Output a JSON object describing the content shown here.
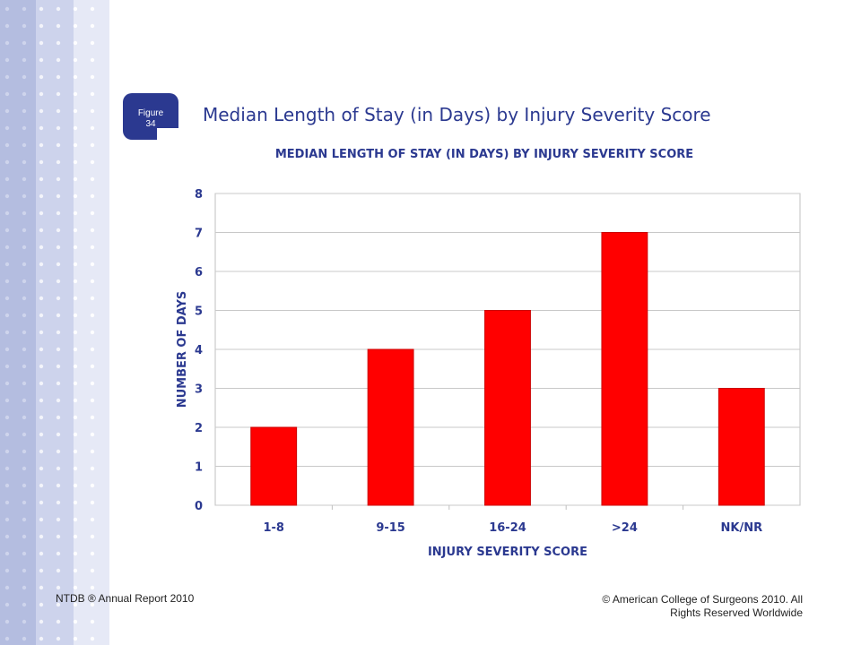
{
  "slide": {
    "title": "Median Length of Stay (in Days) by Injury Severity Score",
    "figure_label": "Figure",
    "figure_number": "34",
    "footer_left": "NTDB ® Annual Report 2010",
    "footer_right_line1": "© American College of Surgeons 2010.  All",
    "footer_right_line2": "Rights Reserved Worldwide"
  },
  "colors": {
    "accent": "#2b3990",
    "bar": "#ff0000"
  },
  "chart_data": {
    "type": "bar",
    "title": "MEDIAN LENGTH OF STAY (IN DAYS) BY INJURY SEVERITY SCORE",
    "xlabel": "INJURY SEVERITY SCORE",
    "ylabel": "NUMBER OF DAYS",
    "categories": [
      "1-8",
      "9-15",
      "16-24",
      ">24",
      "NK/NR"
    ],
    "values": [
      2,
      4,
      5,
      7,
      3
    ],
    "ylim": [
      0,
      8
    ],
    "yticks": [
      0,
      1,
      2,
      3,
      4,
      5,
      6,
      7,
      8
    ],
    "grid": true,
    "legend": "none"
  }
}
